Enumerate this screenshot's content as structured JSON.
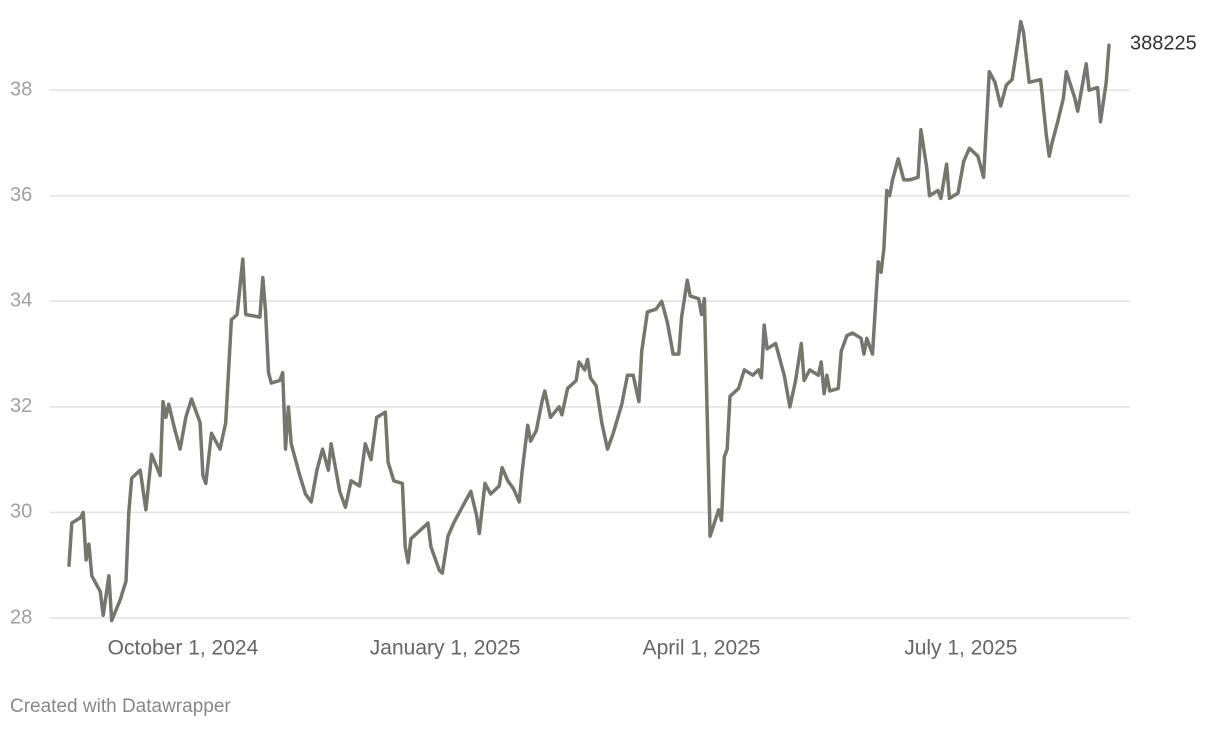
{
  "chart_data": {
    "type": "line",
    "x": [
      "2024-08-22",
      "2024-08-23",
      "2024-08-26",
      "2024-08-27",
      "2024-08-28",
      "2024-08-29",
      "2024-08-30",
      "2024-09-02",
      "2024-09-03",
      "2024-09-05",
      "2024-09-06",
      "2024-09-09",
      "2024-09-11",
      "2024-09-12",
      "2024-09-13",
      "2024-09-16",
      "2024-09-18",
      "2024-09-20",
      "2024-09-23",
      "2024-09-24",
      "2024-09-25",
      "2024-09-26",
      "2024-09-28",
      "2024-09-30",
      "2024-10-02",
      "2024-10-04",
      "2024-10-07",
      "2024-10-08",
      "2024-10-09",
      "2024-10-11",
      "2024-10-14",
      "2024-10-16",
      "2024-10-18",
      "2024-10-20",
      "2024-10-22",
      "2024-10-23",
      "2024-10-28",
      "2024-10-29",
      "2024-10-30",
      "2024-10-31",
      "2024-11-01",
      "2024-11-04",
      "2024-11-05",
      "2024-11-06",
      "2024-11-07",
      "2024-11-08",
      "2024-11-11",
      "2024-11-13",
      "2024-11-15",
      "2024-11-17",
      "2024-11-19",
      "2024-11-21",
      "2024-11-22",
      "2024-11-25",
      "2024-11-27",
      "2024-11-29",
      "2024-12-02",
      "2024-12-04",
      "2024-12-06",
      "2024-12-08",
      "2024-12-11",
      "2024-12-12",
      "2024-12-14",
      "2024-12-17",
      "2024-12-18",
      "2024-12-19",
      "2024-12-20",
      "2024-12-23",
      "2024-12-26",
      "2024-12-27",
      "2024-12-30",
      "2024-12-31",
      "2025-01-02",
      "2025-01-04",
      "2025-01-07",
      "2025-01-10",
      "2025-01-12",
      "2025-01-13",
      "2025-01-15",
      "2025-01-17",
      "2025-01-20",
      "2025-01-21",
      "2025-01-23",
      "2025-01-25",
      "2025-01-27",
      "2025-01-28",
      "2025-01-30",
      "2025-01-31",
      "2025-02-02",
      "2025-02-04",
      "2025-02-05",
      "2025-02-07",
      "2025-02-10",
      "2025-02-11",
      "2025-02-13",
      "2025-02-16",
      "2025-02-17",
      "2025-02-19",
      "2025-02-20",
      "2025-02-21",
      "2025-02-23",
      "2025-02-25",
      "2025-02-27",
      "2025-03-01",
      "2025-03-04",
      "2025-03-06",
      "2025-03-08",
      "2025-03-10",
      "2025-03-11",
      "2025-03-13",
      "2025-03-16",
      "2025-03-18",
      "2025-03-20",
      "2025-03-22",
      "2025-03-24",
      "2025-03-25",
      "2025-03-27",
      "2025-03-28",
      "2025-03-31",
      "2025-04-01",
      "2025-04-02",
      "2025-04-04",
      "2025-04-07",
      "2025-04-08",
      "2025-04-09",
      "2025-04-10",
      "2025-04-11",
      "2025-04-14",
      "2025-04-16",
      "2025-04-19",
      "2025-04-21",
      "2025-04-22",
      "2025-04-23",
      "2025-04-24",
      "2025-04-27",
      "2025-04-30",
      "2025-05-02",
      "2025-05-04",
      "2025-05-06",
      "2025-05-07",
      "2025-05-09",
      "2025-05-12",
      "2025-05-13",
      "2025-05-14",
      "2025-05-15",
      "2025-05-16",
      "2025-05-19",
      "2025-05-20",
      "2025-05-22",
      "2025-05-24",
      "2025-05-27",
      "2025-05-28",
      "2025-05-29",
      "2025-05-31",
      "2025-06-02",
      "2025-06-03",
      "2025-06-04",
      "2025-06-05",
      "2025-06-06",
      "2025-06-07",
      "2025-06-09",
      "2025-06-11",
      "2025-06-13",
      "2025-06-16",
      "2025-06-17",
      "2025-06-19",
      "2025-06-20",
      "2025-06-23",
      "2025-06-24",
      "2025-06-26",
      "2025-06-27",
      "2025-06-30",
      "2025-07-02",
      "2025-07-04",
      "2025-07-07",
      "2025-07-09",
      "2025-07-11",
      "2025-07-13",
      "2025-07-15",
      "2025-07-17",
      "2025-07-19",
      "2025-07-21",
      "2025-07-22",
      "2025-07-23",
      "2025-07-25",
      "2025-07-29",
      "2025-07-31",
      "2025-08-01",
      "2025-08-02",
      "2025-08-04",
      "2025-08-06",
      "2025-08-07",
      "2025-08-10",
      "2025-08-11",
      "2025-08-14",
      "2025-08-15",
      "2025-08-18",
      "2025-08-19",
      "2025-08-21",
      "2025-08-22"
    ],
    "series": [
      {
        "color": "#76766f",
        "values": [
          29.0,
          29.8,
          29.9,
          30.0,
          29.1,
          29.4,
          28.8,
          28.5,
          28.05,
          28.8,
          27.95,
          28.35,
          28.7,
          30.0,
          30.65,
          30.8,
          30.05,
          31.1,
          30.7,
          32.1,
          31.8,
          32.05,
          31.6,
          31.2,
          31.8,
          32.15,
          31.7,
          30.7,
          30.55,
          31.5,
          31.2,
          31.7,
          33.65,
          33.75,
          34.8,
          33.75,
          33.7,
          34.45,
          33.8,
          32.65,
          32.45,
          32.5,
          32.65,
          31.2,
          32.0,
          31.3,
          30.7,
          30.35,
          30.2,
          30.8,
          31.2,
          30.8,
          31.3,
          30.4,
          30.1,
          30.6,
          30.5,
          31.3,
          31.0,
          31.8,
          31.9,
          30.95,
          30.6,
          30.55,
          29.35,
          29.05,
          29.5,
          29.65,
          29.8,
          29.35,
          28.9,
          28.85,
          29.55,
          29.8,
          30.1,
          30.4,
          29.95,
          29.6,
          30.55,
          30.35,
          30.5,
          30.85,
          30.6,
          30.45,
          30.2,
          30.75,
          31.65,
          31.35,
          31.55,
          32.1,
          32.3,
          31.8,
          32.0,
          31.85,
          32.35,
          32.5,
          32.85,
          32.7,
          32.9,
          32.55,
          32.4,
          31.7,
          31.2,
          31.5,
          32.05,
          32.6,
          32.6,
          32.1,
          33.05,
          33.8,
          33.85,
          34.0,
          33.6,
          33.0,
          33.0,
          33.7,
          34.4,
          34.1,
          34.05,
          33.75,
          34.05,
          29.55,
          30.05,
          29.85,
          31.05,
          31.2,
          32.2,
          32.35,
          32.7,
          32.6,
          32.7,
          32.55,
          33.55,
          33.1,
          33.2,
          32.6,
          32.0,
          32.5,
          33.2,
          32.5,
          32.7,
          32.6,
          32.85,
          32.25,
          32.6,
          32.3,
          32.35,
          33.05,
          33.35,
          33.4,
          33.3,
          33.0,
          33.3,
          33.0,
          34.75,
          34.55,
          35.0,
          36.1,
          36.0,
          36.3,
          36.7,
          36.3,
          36.3,
          36.35,
          37.25,
          36.55,
          36.0,
          36.1,
          35.95,
          36.6,
          35.95,
          36.05,
          36.65,
          36.9,
          36.75,
          36.35,
          38.35,
          38.15,
          37.7,
          38.1,
          38.2,
          38.9,
          39.3,
          39.1,
          38.15,
          38.2,
          37.15,
          36.75,
          37.0,
          37.4,
          37.85,
          38.35,
          37.85,
          37.6,
          38.5,
          38.0,
          38.05,
          37.4,
          38.15,
          38.85
        ]
      }
    ],
    "end_label": "388225",
    "xlim": [
      "2024-08-22",
      "2025-08-22"
    ],
    "xticks": [
      {
        "value": "2024-10-01",
        "label": "October 1, 2024"
      },
      {
        "value": "2025-01-01",
        "label": "January 1, 2025"
      },
      {
        "value": "2025-04-01",
        "label": "April 1, 2025"
      },
      {
        "value": "2025-07-01",
        "label": "July 1, 2025"
      }
    ],
    "ylim": [
      28,
      39.5
    ],
    "yticks": [
      28,
      30,
      32,
      34,
      36,
      38
    ],
    "grid": true,
    "footer": "Created with Datawrapper"
  }
}
